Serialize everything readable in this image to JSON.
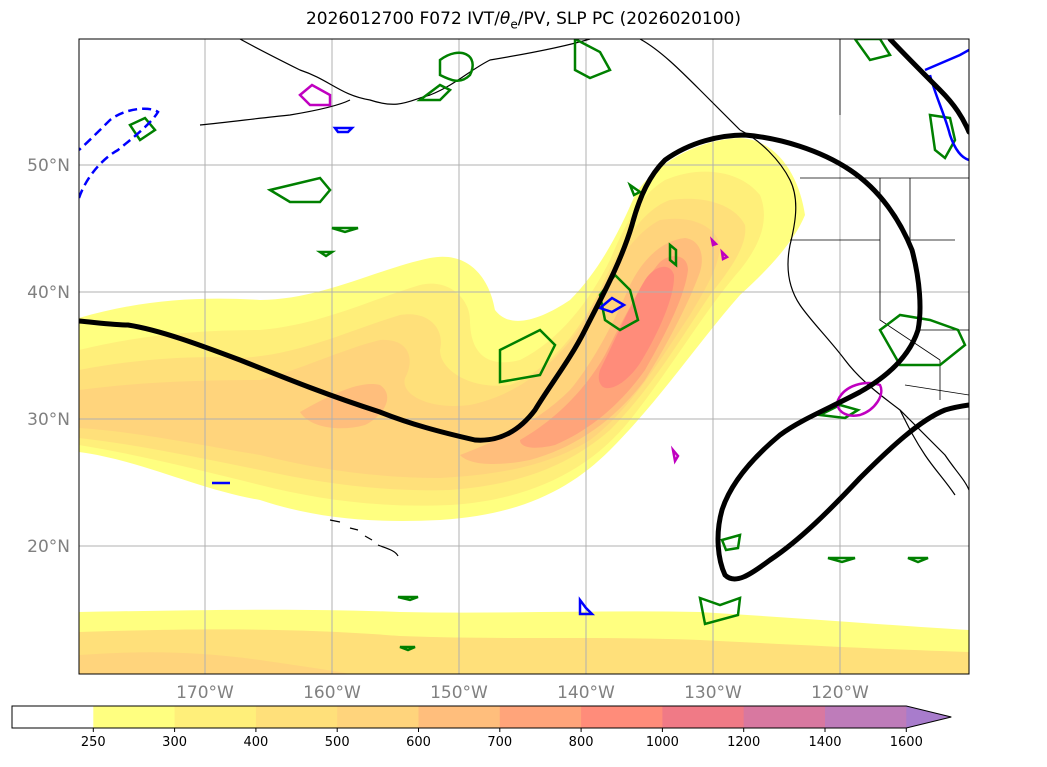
{
  "title": "2026012700 F072 IVT/θe/PV, SLP PC (2026020100)",
  "title_parts": {
    "pre": "2026012700 F072 IVT/",
    "theta": "θ",
    "sub": "e",
    "post": "/PV, SLP PC (2026020100)"
  },
  "map": {
    "lat_labels": [
      "50°N",
      "40°N",
      "30°N",
      "20°N"
    ],
    "lon_labels": [
      "170°W",
      "160°W",
      "150°W",
      "140°W",
      "130°W",
      "120°W"
    ]
  },
  "colorbar": {
    "levels": [
      "250",
      "300",
      "400",
      "500",
      "600",
      "700",
      "800",
      "1000",
      "1200",
      "1400",
      "1600"
    ],
    "colors": [
      "#ffffff",
      "#ffff80",
      "#ffef7a",
      "#ffe07a",
      "#ffd47c",
      "#ffbe7c",
      "#ffa47a",
      "#ff8c7a",
      "#f07a86",
      "#d878a0",
      "#be7cba",
      "#a87ccc"
    ]
  },
  "colors": {
    "slp_contour": "#000000",
    "theta_e_contour": "#008000",
    "pv_contour": "#0000ff",
    "magenta_contour": "#c000c0",
    "grid": "#b0b0b0"
  }
}
